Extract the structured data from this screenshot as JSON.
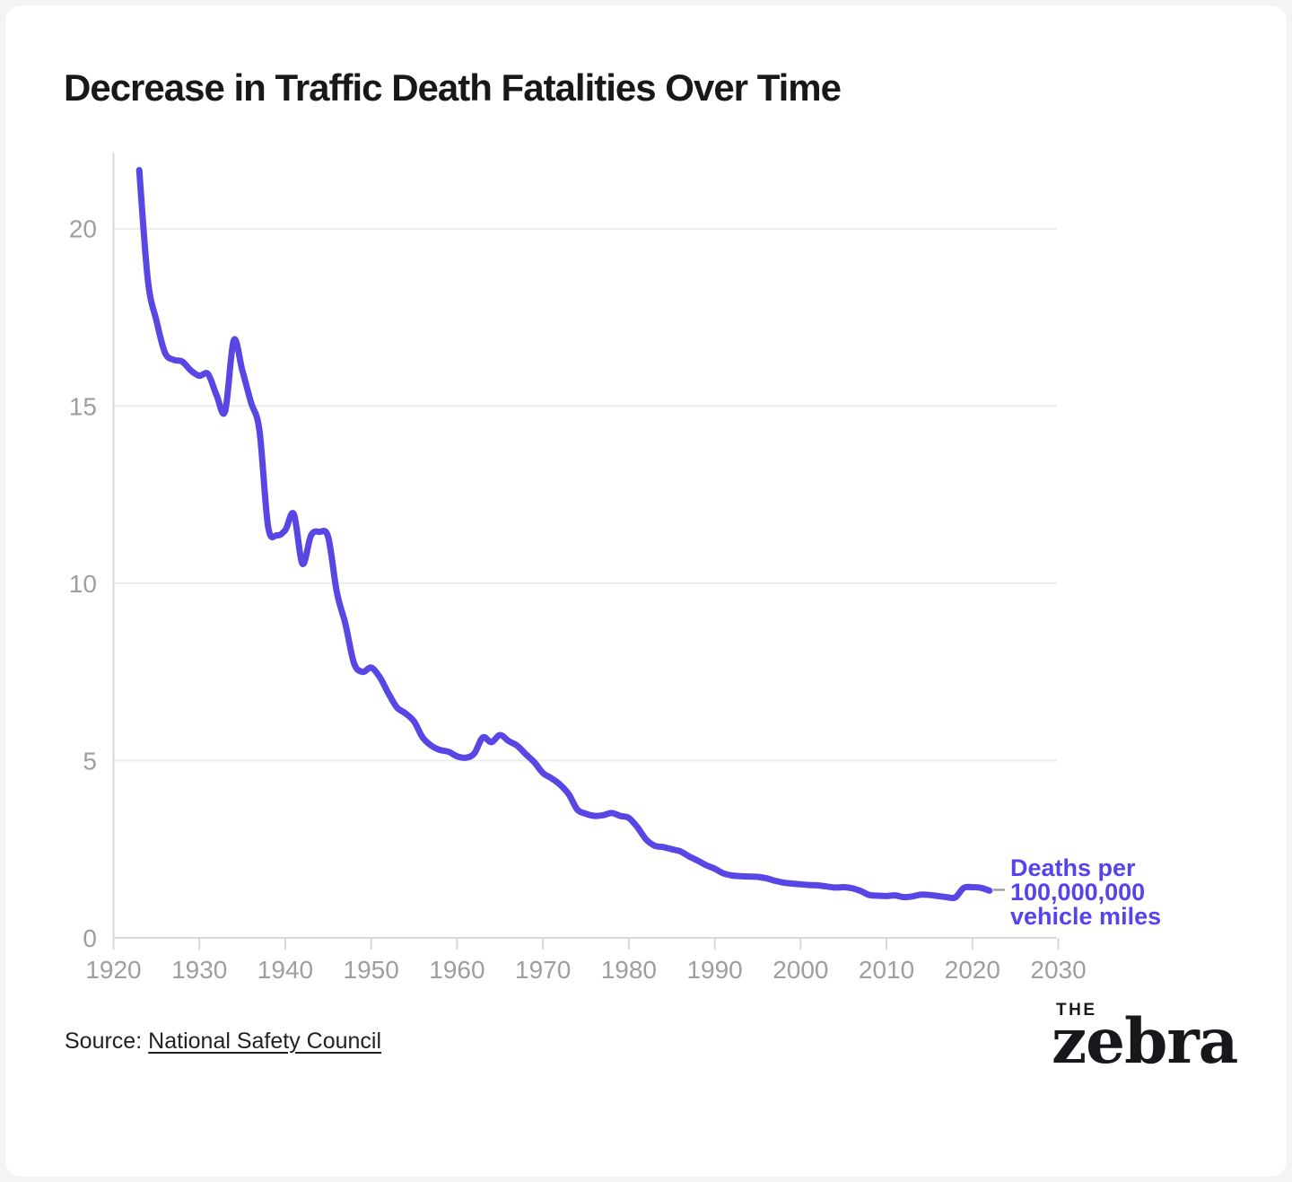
{
  "header": {
    "title": "Decrease in Traffic Death Fatalities Over Time"
  },
  "footer": {
    "source_prefix": "Source:",
    "source_link": "National Safety Council",
    "logo_the": "THE",
    "logo_zebra": "zebra"
  },
  "colors": {
    "accent_text": "#5544ee",
    "line": "#5847e5",
    "axis_text": "#9b9ea3",
    "grid": "#ececec",
    "axis_line": "#d8d8d8",
    "leader": "#a0a0a0"
  },
  "chart_data": {
    "type": "line",
    "title": "Decrease in Traffic Death Fatalities Over Time",
    "xlabel": "",
    "ylabel": "",
    "x_ticks": [
      1920,
      1930,
      1940,
      1950,
      1960,
      1970,
      1980,
      1990,
      2000,
      2010,
      2020,
      2030
    ],
    "y_ticks": [
      0,
      5,
      10,
      15,
      20
    ],
    "xlim": [
      1920,
      2030
    ],
    "ylim": [
      0,
      22.1
    ],
    "grid": true,
    "legend_position": "none",
    "annotation": {
      "lines": [
        "Deaths per",
        "100,000,000",
        "vehicle miles"
      ]
    },
    "series": [
      {
        "name": "Deaths per 100,000,000 vehicle miles",
        "x": [
          1923,
          1924,
          1925,
          1926,
          1927,
          1928,
          1929,
          1930,
          1931,
          1932,
          1933,
          1934,
          1935,
          1936,
          1937,
          1938,
          1939,
          1940,
          1941,
          1942,
          1943,
          1944,
          1945,
          1946,
          1947,
          1948,
          1949,
          1950,
          1951,
          1952,
          1953,
          1954,
          1955,
          1956,
          1957,
          1958,
          1959,
          1960,
          1961,
          1962,
          1963,
          1964,
          1965,
          1966,
          1967,
          1968,
          1969,
          1970,
          1971,
          1972,
          1973,
          1974,
          1975,
          1976,
          1977,
          1978,
          1979,
          1980,
          1981,
          1982,
          1983,
          1984,
          1985,
          1986,
          1987,
          1988,
          1989,
          1990,
          1991,
          1992,
          1993,
          1994,
          1995,
          1996,
          1997,
          1998,
          1999,
          2000,
          2001,
          2002,
          2003,
          2004,
          2005,
          2006,
          2007,
          2008,
          2009,
          2010,
          2011,
          2012,
          2013,
          2014,
          2015,
          2016,
          2017,
          2018,
          2019,
          2020,
          2021,
          2022
        ],
        "values": [
          21.65,
          18.55,
          17.4,
          16.5,
          16.3,
          16.25,
          16.0,
          15.85,
          15.9,
          15.3,
          14.85,
          16.85,
          16.0,
          15.1,
          14.3,
          11.6,
          11.35,
          11.5,
          11.95,
          10.55,
          11.35,
          11.45,
          11.3,
          9.75,
          8.85,
          7.75,
          7.5,
          7.62,
          7.35,
          6.9,
          6.5,
          6.33,
          6.1,
          5.65,
          5.42,
          5.3,
          5.25,
          5.12,
          5.08,
          5.2,
          5.65,
          5.52,
          5.72,
          5.55,
          5.42,
          5.18,
          4.95,
          4.65,
          4.5,
          4.32,
          4.05,
          3.62,
          3.5,
          3.44,
          3.46,
          3.52,
          3.44,
          3.38,
          3.12,
          2.78,
          2.6,
          2.56,
          2.5,
          2.44,
          2.3,
          2.18,
          2.05,
          1.95,
          1.82,
          1.76,
          1.74,
          1.73,
          1.72,
          1.68,
          1.61,
          1.56,
          1.53,
          1.51,
          1.49,
          1.48,
          1.45,
          1.42,
          1.43,
          1.4,
          1.32,
          1.21,
          1.19,
          1.18,
          1.2,
          1.15,
          1.17,
          1.22,
          1.21,
          1.18,
          1.15,
          1.14,
          1.41,
          1.43,
          1.41,
          1.33
        ]
      }
    ]
  }
}
